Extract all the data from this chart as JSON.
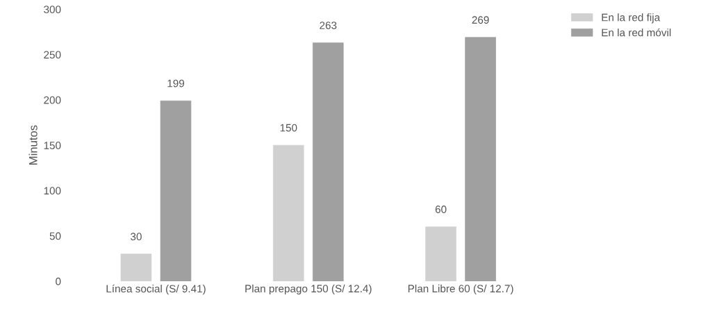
{
  "chart_data": {
    "type": "bar",
    "ylabel": "Minutos",
    "categories": [
      "Línea social (S/ 9.41)",
      "Plan prepago 150 (S/ 12.4)",
      "Plan Libre 60 (S/ 12.7)"
    ],
    "series": [
      {
        "name": "En la red fija",
        "color": "#d0d0d0",
        "values": [
          30,
          150,
          60
        ]
      },
      {
        "name": "En la red móvil",
        "color": "#a0a0a0",
        "values": [
          199,
          263,
          269
        ]
      }
    ],
    "ylim": [
      0,
      300
    ],
    "yticks": [
      0,
      50,
      100,
      150,
      200,
      250,
      300
    ],
    "data_labels": true,
    "grid": false,
    "legend": "top right"
  }
}
